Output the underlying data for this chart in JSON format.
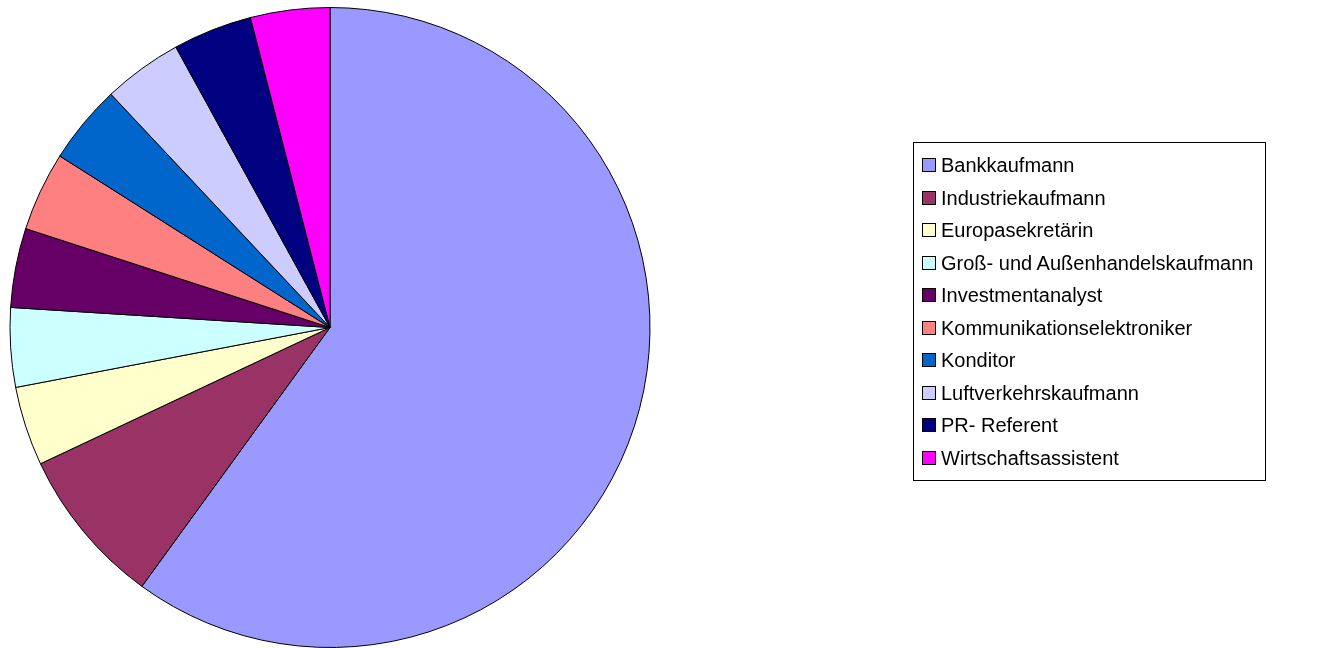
{
  "chart_data": {
    "type": "pie",
    "categories": [
      "Bankkaufmann",
      "Industriekaufmann",
      "Europasekretärin",
      "Groß- und Außenhandelskaufmann",
      "Investmentanalyst",
      "Kommunikationselektroniker",
      "Konditor",
      "Luftverkehrskaufmann",
      "PR- Referent",
      "Wirtschaftsassistent"
    ],
    "values": [
      60,
      8,
      4,
      4,
      4,
      4,
      4,
      4,
      4,
      4
    ],
    "colors": [
      "#9999ff",
      "#993366",
      "#ffffcc",
      "#ccffff",
      "#660066",
      "#ff8080",
      "#0066cc",
      "#ccccff",
      "#000080",
      "#ff00ff"
    ],
    "legend": "right"
  }
}
